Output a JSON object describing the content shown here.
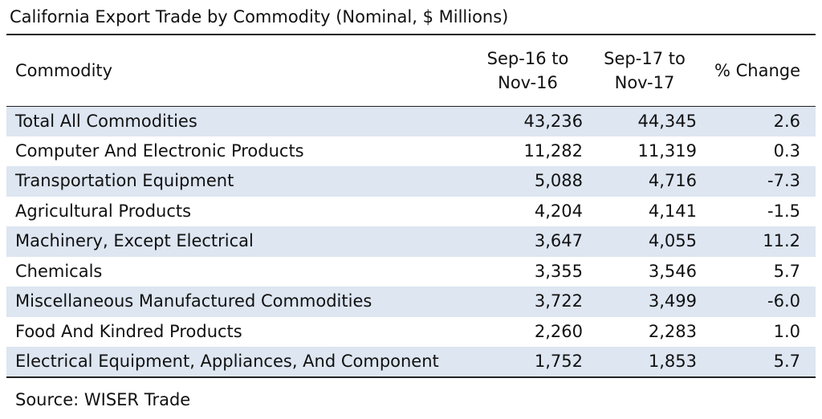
{
  "title": "California Export Trade by Commodity (Nominal, $ Millions)",
  "header": {
    "commodity": "Commodity",
    "period1_line1": "Sep-16  to",
    "period1_line2": "Nov-16",
    "period2_line1": "Sep-17  to",
    "period2_line2": "Nov-17",
    "change": "% Change"
  },
  "rows": [
    {
      "name": "Total All Commodities",
      "v1": "43,236",
      "v2": "44,345",
      "chg": "2.6"
    },
    {
      "name": "Computer And Electronic Products",
      "v1": "11,282",
      "v2": "11,319",
      "chg": "0.3"
    },
    {
      "name": "Transportation Equipment",
      "v1": "5,088",
      "v2": "4,716",
      "chg": "-7.3"
    },
    {
      "name": "Agricultural Products",
      "v1": "4,204",
      "v2": "4,141",
      "chg": "-1.5"
    },
    {
      "name": "Machinery, Except Electrical",
      "v1": "3,647",
      "v2": "4,055",
      "chg": "11.2"
    },
    {
      "name": "Chemicals",
      "v1": "3,355",
      "v2": "3,546",
      "chg": "5.7"
    },
    {
      "name": "Miscellaneous Manufactured Commodities",
      "v1": "3,722",
      "v2": "3,499",
      "chg": "-6.0"
    },
    {
      "name": "Food And Kindred Products",
      "v1": "2,260",
      "v2": "2,283",
      "chg": "1.0"
    },
    {
      "name": "Electrical Equipment, Appliances, And Component",
      "v1": "1,752",
      "v2": "1,853",
      "chg": "5.7"
    }
  ],
  "source": "Source: WISER Trade",
  "colors": {
    "shaded_row": "#dde6f1",
    "rule": "#222222",
    "text": "#111111"
  }
}
